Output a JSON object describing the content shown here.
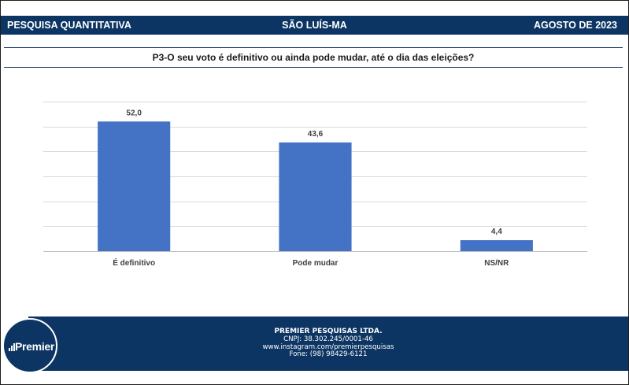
{
  "header": {
    "left": "PESQUISA QUANTITATIVA",
    "center": "SÃO LUÍS-MA",
    "right": "AGOSTO DE 2023"
  },
  "question": "P3-O seu voto é definitivo ou ainda pode mudar, até o dia das eleições?",
  "colors": {
    "brand": "#0c3563",
    "bar": "#4472c4"
  },
  "chart_data": {
    "type": "bar",
    "categories": [
      "É definitivo",
      "Pode mudar",
      "NS/NR"
    ],
    "values": [
      52.0,
      43.6,
      4.4
    ],
    "data_labels": [
      "52,0",
      "43,6",
      "4,4"
    ],
    "title": "",
    "xlabel": "",
    "ylabel": "",
    "ylim": [
      0,
      60
    ],
    "grid": true,
    "legend": "none"
  },
  "footer": {
    "company": "PREMIER PESQUISAS LTDA.",
    "cnpj": "CNPJ: 38.302.245/0001-46",
    "instagram": "www.instagram.com/premierpesquisas",
    "phone": "Fone: (98) 98429-6121"
  },
  "logo": {
    "text": "Premier",
    "icon": "signal-bars-icon"
  }
}
